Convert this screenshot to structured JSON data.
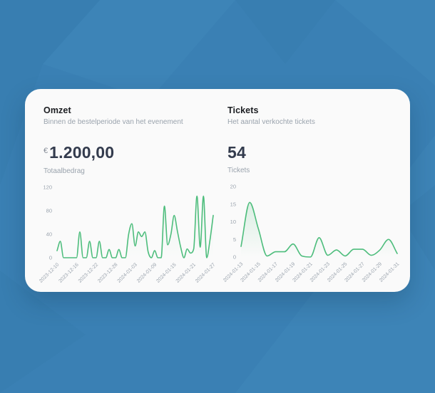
{
  "theme": {
    "background_blue": "#3a80b4",
    "background_blue_light": "#4e95c6",
    "background_blue_dark": "#34789f",
    "card_bg": "#fafafa",
    "title_color": "#1b1d21",
    "muted_color": "#9aa3ad",
    "stat_color": "#333b4d",
    "axis_label_color": "#9aa3ad",
    "line_green": "#4dbd7c"
  },
  "panels": [
    {
      "title": "Omzet",
      "subtitle": "Binnen de bestelperiode van het evenement",
      "stat": {
        "prefix": "€",
        "value": "1.200,00",
        "label": "Totaalbedrag"
      }
    },
    {
      "title": "Tickets",
      "subtitle": "Het aantal verkochte tickets",
      "stat": {
        "prefix": "",
        "value": "54",
        "label": "Tickets"
      }
    }
  ],
  "chart_data": [
    {
      "type": "line",
      "title": "Omzet per dag",
      "x": [
        "2023-12-10",
        "2023-12-11",
        "2023-12-12",
        "2023-12-13",
        "2023-12-14",
        "2023-12-15",
        "2023-12-16",
        "2023-12-17",
        "2023-12-18",
        "2023-12-19",
        "2023-12-20",
        "2023-12-21",
        "2023-12-22",
        "2023-12-23",
        "2023-12-24",
        "2023-12-25",
        "2023-12-26",
        "2023-12-27",
        "2023-12-28",
        "2023-12-29",
        "2023-12-30",
        "2023-12-31",
        "2024-01-01",
        "2024-01-02",
        "2024-01-03",
        "2024-01-04",
        "2024-01-05",
        "2024-01-06",
        "2024-01-07",
        "2024-01-08",
        "2024-01-09",
        "2024-01-10",
        "2024-01-11",
        "2024-01-12",
        "2024-01-13",
        "2024-01-14",
        "2024-01-15",
        "2024-01-16",
        "2024-01-17",
        "2024-01-18",
        "2024-01-19",
        "2024-01-20",
        "2024-01-21",
        "2024-01-22",
        "2024-01-23",
        "2024-01-24",
        "2024-01-25",
        "2024-01-26",
        "2024-01-27"
      ],
      "values": [
        12,
        28,
        0,
        0,
        0,
        0,
        0,
        44,
        0,
        0,
        28,
        0,
        0,
        28,
        0,
        0,
        14,
        0,
        0,
        14,
        0,
        0,
        40,
        58,
        20,
        44,
        36,
        44,
        10,
        0,
        12,
        0,
        0,
        88,
        22,
        40,
        72,
        45,
        18,
        0,
        15,
        8,
        15,
        105,
        18,
        105,
        0,
        30,
        72
      ],
      "ylim": [
        0,
        120
      ],
      "yticks": [
        0,
        40,
        80,
        120
      ],
      "xtick_every": 6,
      "xtick_labels": [
        "2023-12-10",
        "2023-12-16",
        "2023-12-22",
        "2023-12-28",
        "2024-01-03",
        "2024-01-09",
        "2024-01-15",
        "2024-01-21",
        "2024-01-27"
      ],
      "line_color": "#4dbd7c",
      "fill_top_opacity": 0.08,
      "grid": false,
      "legend": "none"
    },
    {
      "type": "line",
      "title": "Tickets per dag",
      "x": [
        "2024-01-13",
        "2024-01-14",
        "2024-01-15",
        "2024-01-16",
        "2024-01-17",
        "2024-01-18",
        "2024-01-19",
        "2024-01-20",
        "2024-01-21",
        "2024-01-22",
        "2024-01-23",
        "2024-01-24",
        "2024-01-25",
        "2024-01-26",
        "2024-01-27",
        "2024-01-28",
        "2024-01-29",
        "2024-01-30",
        "2024-01-31"
      ],
      "values": [
        3,
        15.5,
        8,
        0.3,
        1.5,
        1.5,
        3.7,
        0.3,
        0,
        5.5,
        0.5,
        2,
        0.3,
        2.2,
        2.2,
        0.5,
        2,
        5,
        1
      ],
      "ylim": [
        0,
        20
      ],
      "yticks": [
        0,
        5,
        10,
        15,
        20
      ],
      "xtick_every": 2,
      "xtick_labels": [
        "2024-01-13",
        "2024-01-15",
        "2024-01-17",
        "2024-01-19",
        "2024-01-21",
        "2024-01-23",
        "2024-01-25",
        "2024-01-27",
        "2024-01-29",
        "2024-01-31"
      ],
      "line_color": "#4dbd7c",
      "fill_top_opacity": 0.18,
      "grid": false,
      "legend": "none"
    }
  ]
}
